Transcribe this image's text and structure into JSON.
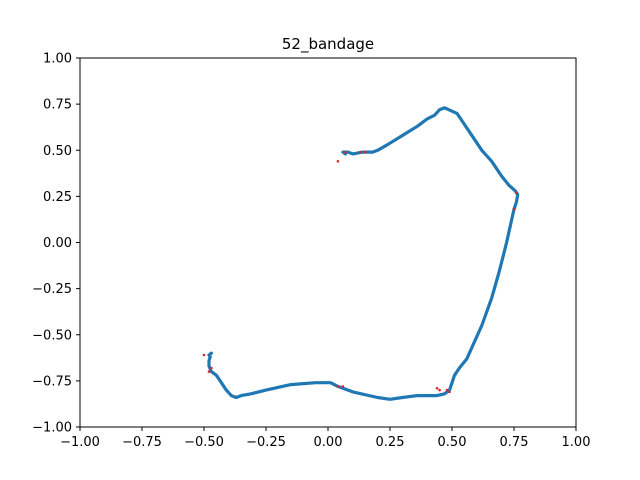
{
  "chart_data": {
    "type": "scatter",
    "title": "52_bandage",
    "xlabel": "",
    "ylabel": "",
    "xlim": [
      -1.0,
      1.0
    ],
    "ylim": [
      -1.0,
      1.0
    ],
    "xticks": [
      "−1.00",
      "−0.75",
      "−0.50",
      "−0.25",
      "0.00",
      "0.25",
      "0.50",
      "0.75",
      "1.00"
    ],
    "yticks": [
      "1.00",
      "0.75",
      "0.50",
      "0.25",
      "0.00",
      "−0.25",
      "−0.50",
      "−0.75",
      "−1.00"
    ],
    "grid": false,
    "colors": {
      "path": "#1f77b4",
      "points": "#d62728"
    },
    "series": [
      {
        "style": "line",
        "x": [
          0.07,
          0.06,
          0.08,
          0.1,
          0.14,
          0.18,
          0.2,
          0.24,
          0.3,
          0.36,
          0.4,
          0.43,
          0.45,
          0.47,
          0.52,
          0.57,
          0.62,
          0.66,
          0.7,
          0.73,
          0.755,
          0.765,
          0.76,
          0.75,
          0.74,
          0.72,
          0.69,
          0.66,
          0.62,
          0.58,
          0.56,
          0.53,
          0.51,
          0.5,
          0.49,
          0.47,
          0.44,
          0.36,
          0.3,
          0.25,
          0.2,
          0.1,
          0.04,
          0.01,
          -0.05,
          -0.15,
          -0.25,
          -0.31,
          -0.35,
          -0.37,
          -0.39,
          -0.41,
          -0.43,
          -0.45,
          -0.47,
          -0.48,
          -0.48,
          -0.475,
          -0.48,
          -0.47
        ],
        "y": [
          0.48,
          0.49,
          0.49,
          0.48,
          0.49,
          0.49,
          0.5,
          0.53,
          0.58,
          0.63,
          0.67,
          0.69,
          0.72,
          0.73,
          0.7,
          0.6,
          0.5,
          0.44,
          0.36,
          0.31,
          0.28,
          0.26,
          0.22,
          0.18,
          0.12,
          0.0,
          -0.16,
          -0.3,
          -0.45,
          -0.57,
          -0.63,
          -0.68,
          -0.72,
          -0.76,
          -0.8,
          -0.82,
          -0.83,
          -0.83,
          -0.84,
          -0.85,
          -0.84,
          -0.81,
          -0.78,
          -0.76,
          -0.76,
          -0.77,
          -0.8,
          -0.82,
          -0.83,
          -0.84,
          -0.83,
          -0.8,
          -0.76,
          -0.72,
          -0.7,
          -0.67,
          -0.64,
          -0.62,
          -0.61,
          -0.6
        ]
      },
      {
        "style": "points",
        "x": [
          0.04,
          0.07,
          0.13,
          0.15,
          0.44,
          0.45,
          0.48,
          0.49,
          0.76,
          0.75,
          -0.5,
          -0.47,
          -0.48,
          0.06,
          0.04
        ],
        "y": [
          0.44,
          0.49,
          0.49,
          0.49,
          -0.79,
          -0.8,
          -0.8,
          -0.81,
          0.27,
          0.18,
          -0.61,
          -0.68,
          -0.7,
          -0.78,
          -0.78
        ]
      }
    ]
  }
}
